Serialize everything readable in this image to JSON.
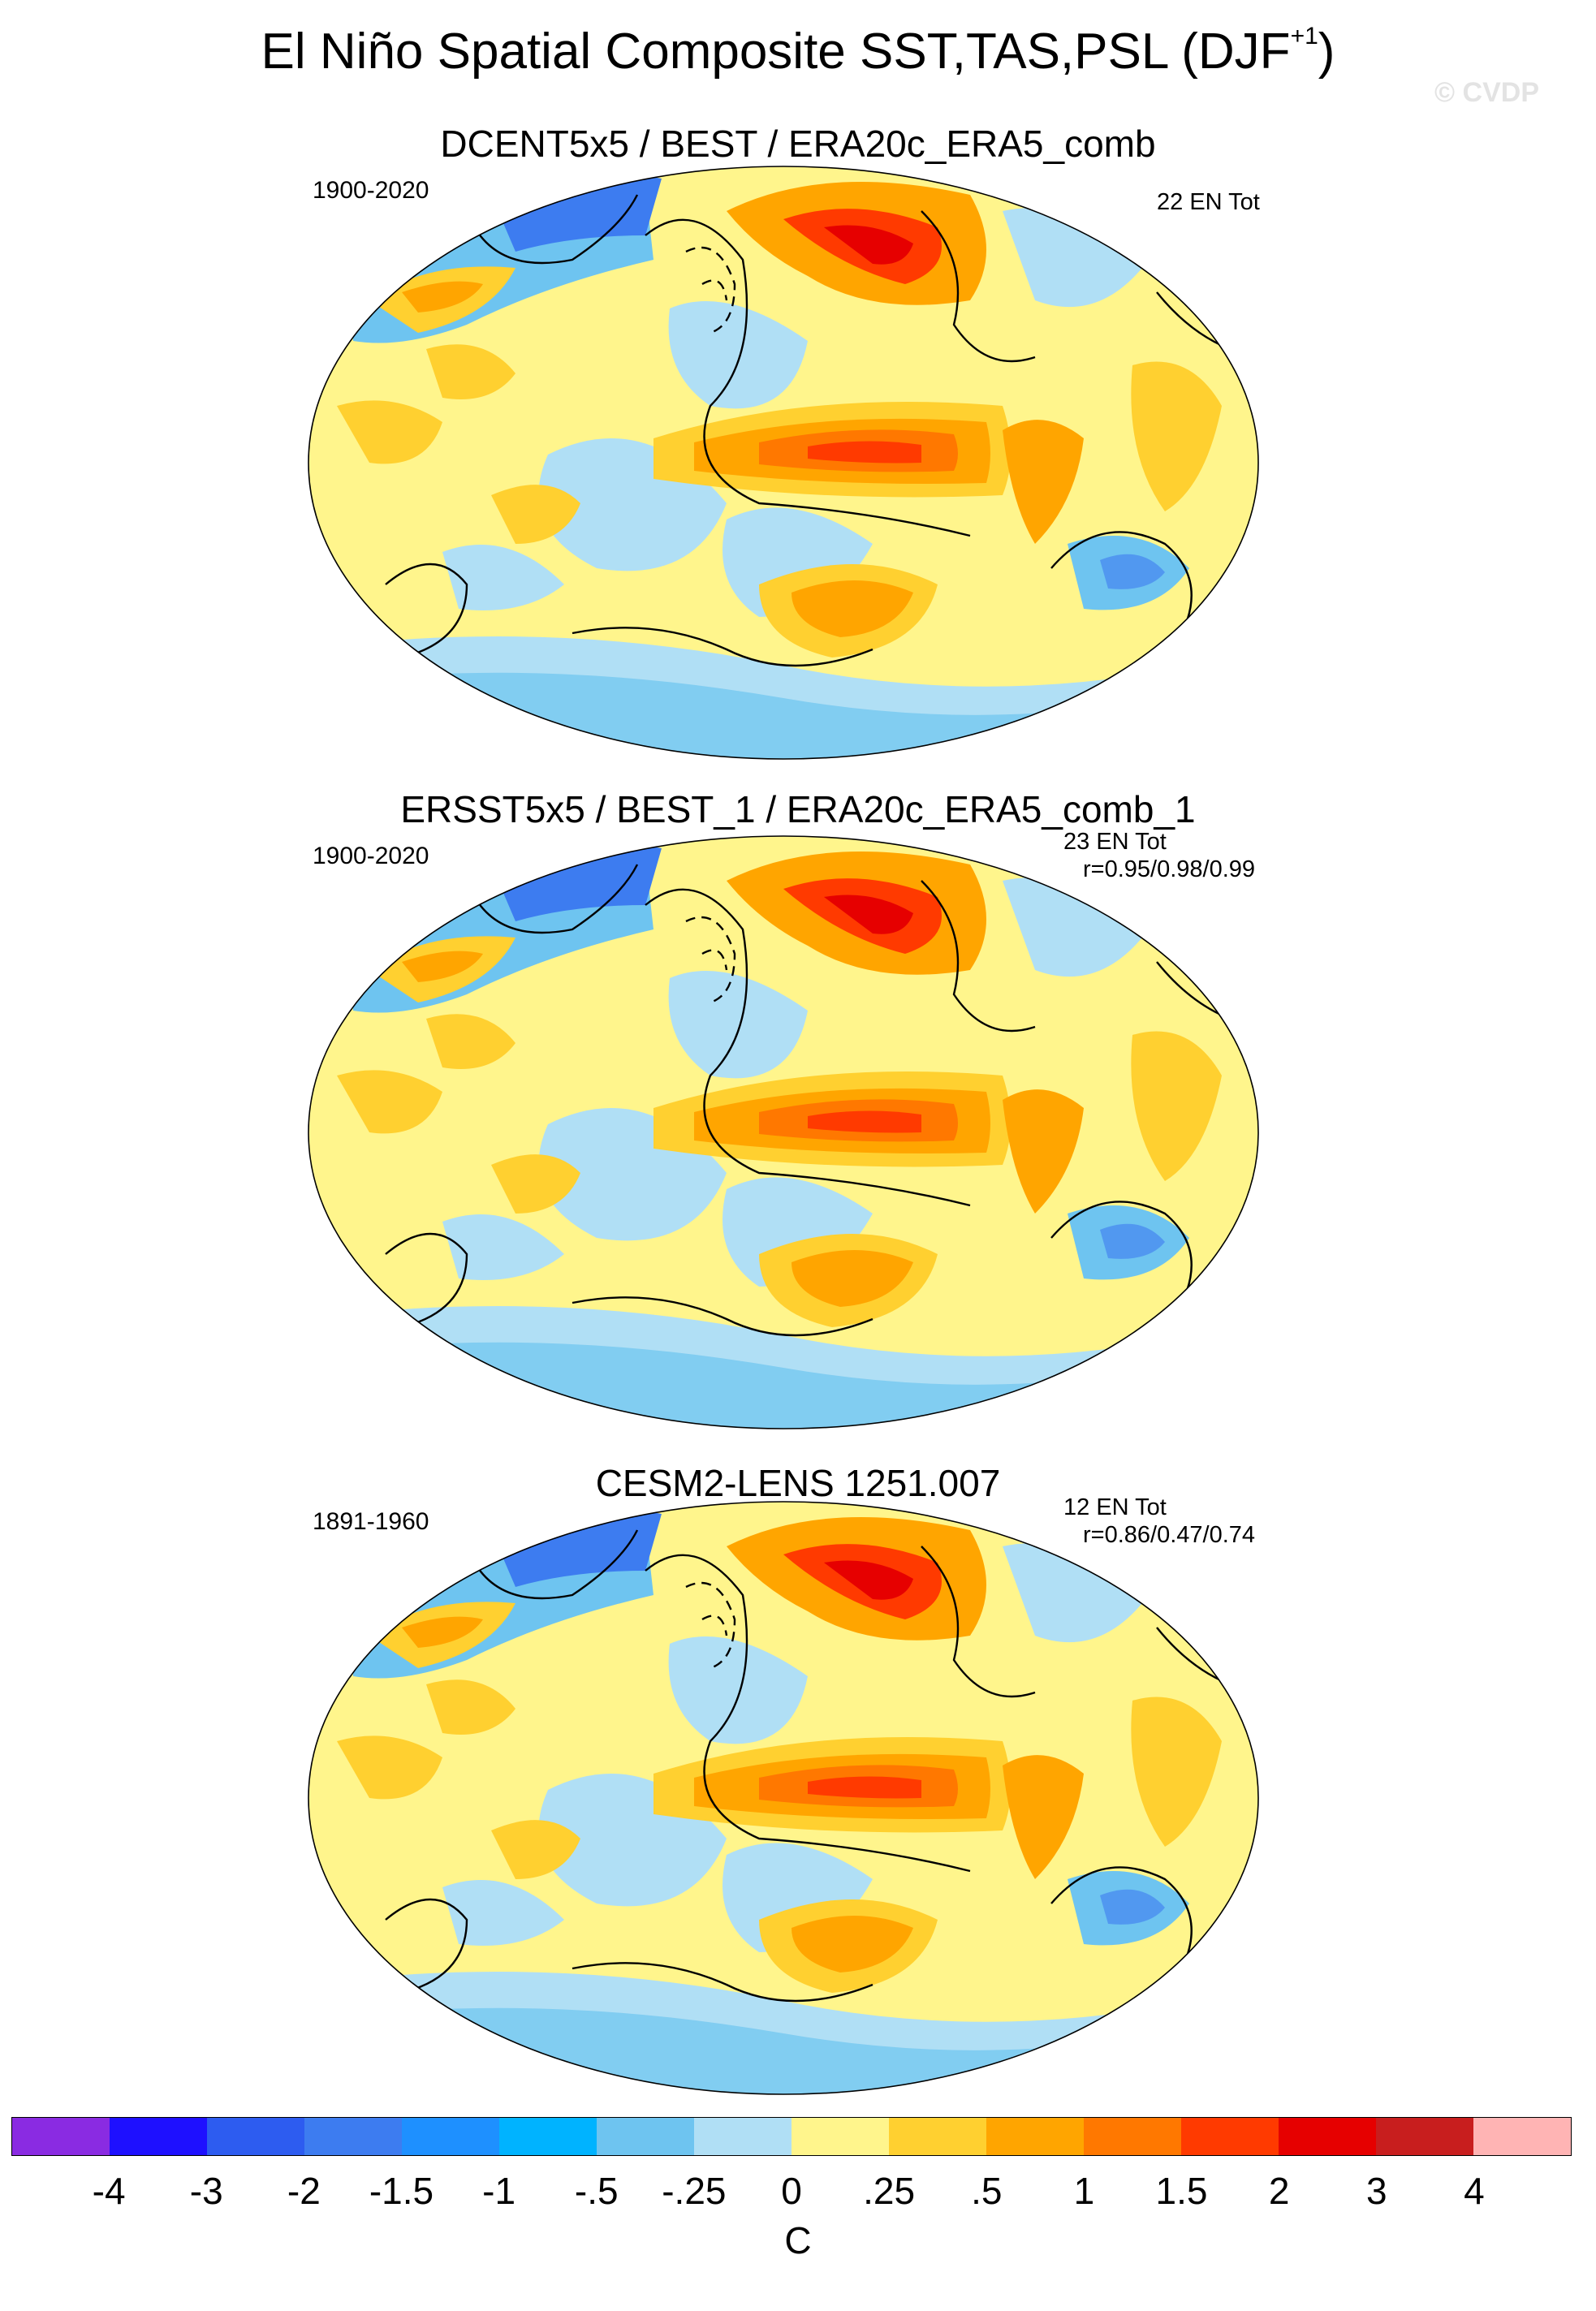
{
  "title_main": "El Niño Spatial Composite SST,TAS,PSL (DJF",
  "title_sup": "+1",
  "title_close": ")",
  "watermark": "© CVDP",
  "panels": [
    {
      "title": "DCENT5x5 / BEST / ERA20c_ERA5_comb",
      "period": "1900-2020",
      "count": "22 EN Tot",
      "corr": ""
    },
    {
      "title": "ERSST5x5 / BEST_1 / ERA20c_ERA5_comb_1",
      "period": "1900-2020",
      "count": "23 EN Tot",
      "corr": "r=0.95/0.98/0.99"
    },
    {
      "title": "CESM2-LENS 1251.007",
      "period": "1891-1960",
      "count": "12 EN Tot",
      "corr": "r=0.86/0.47/0.74"
    }
  ],
  "colorbar": {
    "colors": [
      "#8a2be2",
      "#1e10ff",
      "#2d5cf0",
      "#3d7cf0",
      "#1e90ff",
      "#00b3ff",
      "#6ec4f0",
      "#b0dff5",
      "#fff58c",
      "#ffd030",
      "#ffa500",
      "#ff7800",
      "#ff3a00",
      "#e60000",
      "#c81e1e",
      "#ffb4b4"
    ],
    "labels": [
      "-4",
      "-3",
      "-2",
      "-1.5",
      "-1",
      "-.5",
      "-.25",
      "0",
      ".25",
      ".5",
      "1",
      "1.5",
      "2",
      "3",
      "4"
    ],
    "unit": "C"
  },
  "legend_colors": {
    "land_mask": "#ffffff",
    "contour": "#000000"
  }
}
